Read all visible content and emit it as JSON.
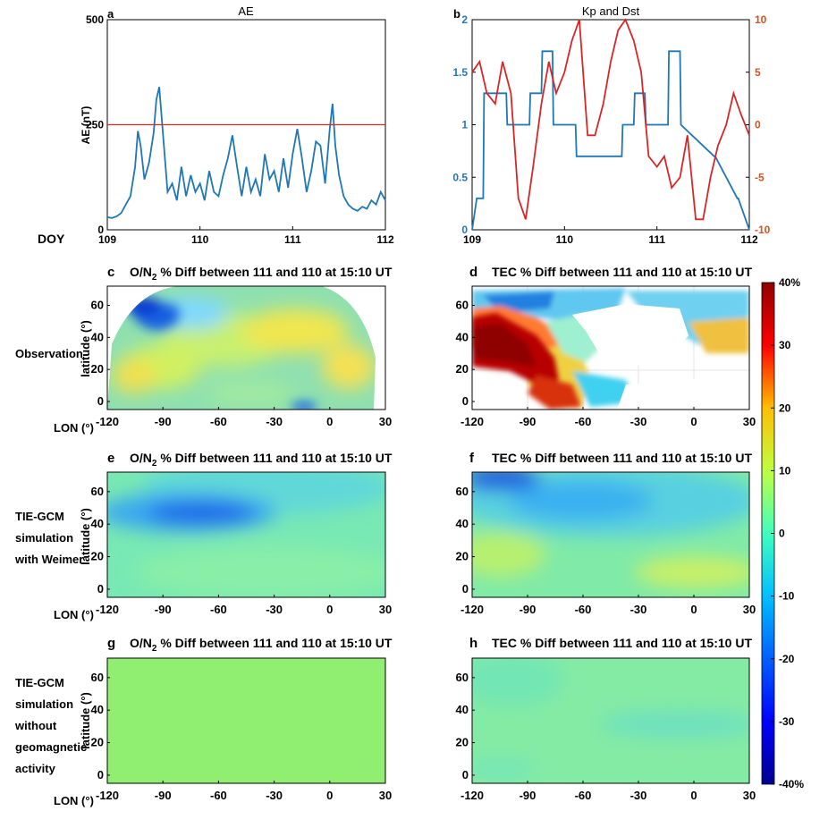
{
  "chart_data": [
    {
      "id": "a",
      "type": "line",
      "title": "AE",
      "panel_label": "a",
      "ylabel": "AE (nT)",
      "xlabel": "DOY",
      "xlim": [
        109,
        112
      ],
      "ylim": [
        0,
        500
      ],
      "xticks": [
        "109",
        "110",
        "111",
        "112"
      ],
      "yticks": [
        "0",
        "250",
        "500"
      ],
      "series": [
        {
          "name": "AE",
          "color": "#1f77b4",
          "x": [
            109.0,
            109.05,
            109.1,
            109.15,
            109.2,
            109.25,
            109.3,
            109.33,
            109.36,
            109.4,
            109.45,
            109.5,
            109.53,
            109.56,
            109.6,
            109.65,
            109.7,
            109.75,
            109.8,
            109.85,
            109.9,
            109.95,
            110.0,
            110.05,
            110.1,
            110.15,
            110.2,
            110.25,
            110.3,
            110.35,
            110.4,
            110.45,
            110.5,
            110.55,
            110.6,
            110.65,
            110.7,
            110.75,
            110.8,
            110.85,
            110.9,
            110.95,
            111.0,
            111.05,
            111.1,
            111.15,
            111.2,
            111.25,
            111.3,
            111.35,
            111.4,
            111.43,
            111.46,
            111.5,
            111.55,
            111.6,
            111.65,
            111.7,
            111.75,
            111.8,
            111.85,
            111.9,
            111.95,
            112.0
          ],
          "y": [
            30,
            28,
            32,
            40,
            60,
            80,
            150,
            235,
            200,
            120,
            160,
            230,
            310,
            340,
            230,
            90,
            110,
            70,
            150,
            80,
            130,
            90,
            110,
            70,
            140,
            90,
            80,
            130,
            170,
            225,
            150,
            80,
            150,
            90,
            120,
            80,
            180,
            120,
            140,
            90,
            170,
            100,
            180,
            240,
            170,
            90,
            140,
            210,
            200,
            110,
            240,
            300,
            200,
            130,
            80,
            60,
            50,
            45,
            55,
            50,
            70,
            60,
            90,
            70
          ]
        }
      ],
      "reference_line": {
        "y": 250,
        "color": "#d62728"
      }
    },
    {
      "id": "b",
      "type": "line",
      "title": "Kp and Dst",
      "panel_label": "b",
      "xlim": [
        109,
        112
      ],
      "xticks": [
        "109",
        "110",
        "111",
        "112"
      ],
      "y_left": {
        "lim": [
          0,
          2
        ],
        "ticks": [
          "0",
          "0.5",
          "1",
          "1.5",
          "2"
        ],
        "color": "#1f77b4"
      },
      "y_right": {
        "lim": [
          -10,
          10
        ],
        "ticks": [
          "-10",
          "-5",
          "0",
          "5",
          "10"
        ],
        "color": "#d95319"
      },
      "series": [
        {
          "name": "Kp",
          "axis": "left",
          "color": "#1f77b4",
          "x": [
            109.0,
            109.05,
            109.12,
            109.13,
            109.37,
            109.38,
            109.62,
            109.63,
            109.75,
            109.76,
            109.87,
            109.88,
            110.12,
            110.13,
            110.62,
            110.63,
            110.75,
            110.76,
            110.87,
            110.88,
            111.12,
            111.13,
            111.25,
            111.26,
            111.62,
            111.63,
            111.87,
            111.88,
            112.0
          ],
          "y": [
            0,
            0.3,
            0.3,
            1.3,
            1.3,
            1.0,
            1.0,
            1.3,
            1.3,
            1.7,
            1.7,
            1.0,
            1.0,
            0.7,
            0.7,
            1.0,
            1.0,
            1.3,
            1.3,
            1.0,
            1.0,
            1.7,
            1.7,
            1.0,
            0.7,
            0.7,
            0.3,
            0.3,
            0
          ]
        },
        {
          "name": "Dst",
          "axis": "right",
          "color": "#d62728",
          "x": [
            109.0,
            109.08,
            109.16,
            109.25,
            109.33,
            109.42,
            109.5,
            109.58,
            109.66,
            109.75,
            109.83,
            109.91,
            110.0,
            110.08,
            110.16,
            110.25,
            110.33,
            110.42,
            110.5,
            110.58,
            110.66,
            110.75,
            110.83,
            110.91,
            111.0,
            111.08,
            111.16,
            111.25,
            111.33,
            111.42,
            111.5,
            111.58,
            111.66,
            111.75,
            111.83,
            111.91,
            112.0
          ],
          "y": [
            5,
            6,
            3,
            2,
            6,
            3,
            -7,
            -9,
            -4,
            2,
            6,
            3,
            5,
            8,
            10,
            -1,
            -1,
            2,
            6,
            9,
            10,
            8,
            5,
            -3,
            -4,
            -3,
            -6,
            -5,
            -1,
            -9,
            -9,
            -5,
            -2,
            0,
            3,
            1,
            -1
          ]
        }
      ]
    },
    {
      "id": "c",
      "type": "heatmap",
      "panel_label": "c",
      "title": "O/N",
      "title_sub": "2",
      "title_rest": " % Diff between 111 and 110 at 15:10 UT",
      "ylabel": "latitude (°)",
      "xlabel": "LON (°)",
      "xticks": [
        "-120",
        "-90",
        "-60",
        "-30",
        "0",
        "30"
      ],
      "yticks": [
        "0",
        "20",
        "40",
        "60"
      ],
      "xlim": [
        -120,
        30
      ],
      "ylim": [
        -5,
        72
      ],
      "row_label": "Observation"
    },
    {
      "id": "d",
      "type": "heatmap",
      "panel_label": "d",
      "title": "TEC % Diff between 111 and 110 at 15:10 UT",
      "xticks": [
        "-120",
        "-90",
        "-60",
        "-30",
        "0",
        "30"
      ],
      "yticks": [
        "0",
        "20",
        "40",
        "60"
      ],
      "xlim": [
        -120,
        30
      ],
      "ylim": [
        -5,
        72
      ]
    },
    {
      "id": "e",
      "type": "heatmap",
      "panel_label": "e",
      "title": "O/N",
      "title_sub": "2",
      "title_rest": " % Diff between 111 and 110 at 15:10 UT",
      "ylabel": "latitude (°)",
      "xlabel": "LON (°)",
      "xticks": [
        "-120",
        "-90",
        "-60",
        "-30",
        "0",
        "30"
      ],
      "yticks": [
        "0",
        "20",
        "40",
        "60"
      ],
      "xlim": [
        -120,
        30
      ],
      "ylim": [
        -5,
        72
      ],
      "row_label": [
        "TIE-GCM",
        "simulation",
        "with Weimer"
      ]
    },
    {
      "id": "f",
      "type": "heatmap",
      "panel_label": "f",
      "title": "TEC % Diff between 111 and 110 at 15:10 UT",
      "xticks": [
        "-120",
        "-90",
        "-60",
        "-30",
        "0",
        "30"
      ],
      "yticks": [
        "0",
        "20",
        "40",
        "60"
      ],
      "xlim": [
        -120,
        30
      ],
      "ylim": [
        -5,
        72
      ]
    },
    {
      "id": "g",
      "type": "heatmap",
      "panel_label": "g",
      "title": "O/N",
      "title_sub": "2",
      "title_rest": " % Diff between 111 and 110 at 15:10 UT",
      "ylabel": "latitude (°)",
      "xlabel": "LON (°)",
      "xticks": [
        "-120",
        "-90",
        "-60",
        "-30",
        "0",
        "30"
      ],
      "yticks": [
        "0",
        "20",
        "40",
        "60"
      ],
      "xlim": [
        -120,
        30
      ],
      "ylim": [
        -5,
        72
      ],
      "row_label": [
        "TIE-GCM",
        "simulation",
        "without",
        "geomagnetic",
        "activity"
      ]
    },
    {
      "id": "h",
      "type": "heatmap",
      "panel_label": "h",
      "title": "TEC % Diff between 111 and 110 at 15:10 UT",
      "xticks": [
        "-120",
        "-90",
        "-60",
        "-30",
        "0",
        "30"
      ],
      "yticks": [
        "0",
        "20",
        "40",
        "60"
      ],
      "xlim": [
        -120,
        30
      ],
      "ylim": [
        -5,
        72
      ]
    }
  ],
  "colorbar": {
    "min": -40,
    "max": 40,
    "ticks": [
      "40%",
      "30",
      "20",
      "10",
      "0",
      "-10",
      "-20",
      "-30",
      "-40%"
    ],
    "colors": [
      "#00008f",
      "#0000ff",
      "#00bfff",
      "#40ffbf",
      "#bfff40",
      "#ffbf00",
      "#ff0000",
      "#8f0000"
    ]
  }
}
